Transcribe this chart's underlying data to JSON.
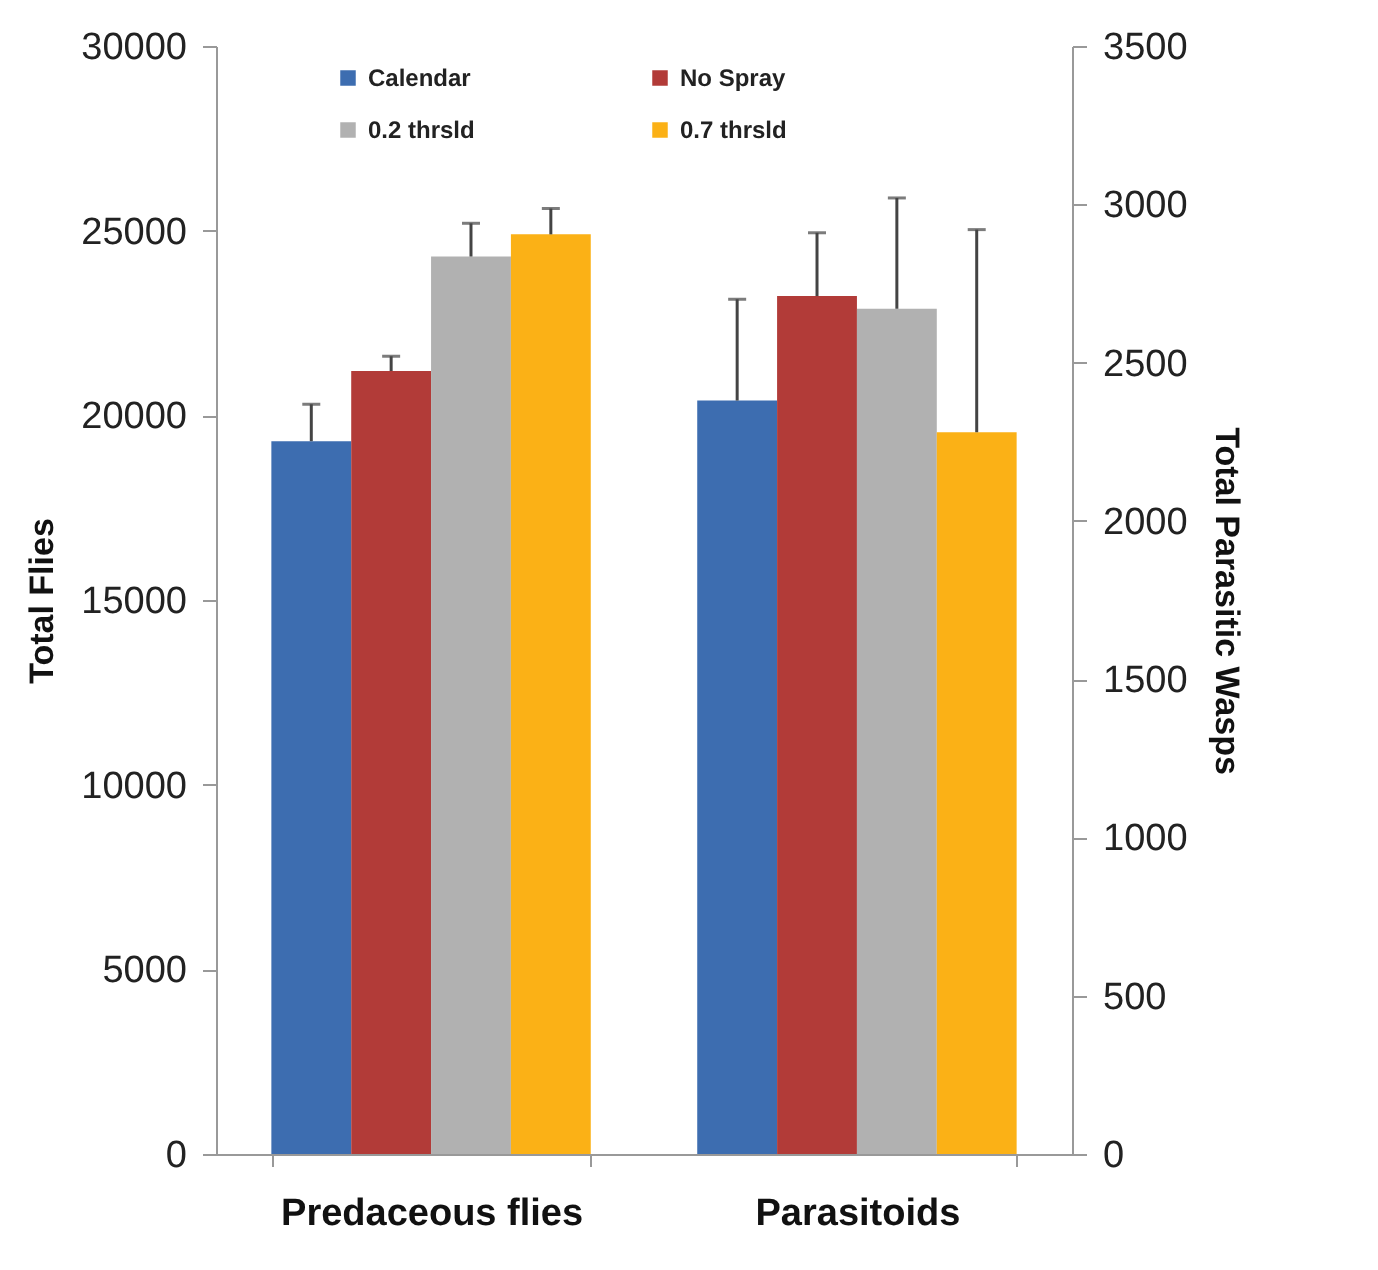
{
  "chart_data": {
    "type": "bar",
    "categories": [
      "Predaceous flies",
      "Parasitoids"
    ],
    "ylabel": "Total Flies",
    "ylim": [
      0,
      30000
    ],
    "yticks": [
      0,
      5000,
      10000,
      15000,
      20000,
      25000,
      30000
    ],
    "y2label": "Total Parasitic Wasps",
    "y2lim": [
      0,
      3500
    ],
    "y2ticks": [
      0,
      500,
      1000,
      1500,
      2000,
      2500,
      3000,
      3500
    ],
    "legend": "top",
    "series": [
      {
        "name": "Calendar",
        "color": "#3d6db0",
        "values": [
          19300,
          null
        ],
        "errors": [
          [
            19300,
            20300
          ],
          null
        ]
      },
      {
        "name": "No Spray",
        "color": "#b23b38",
        "values": [
          21200,
          null
        ],
        "errors": [
          [
            21200,
            21600
          ],
          null
        ]
      },
      {
        "name": "0.2 thrsld",
        "color": "#b1b1b1",
        "values": [
          24300,
          null
        ],
        "errors": [
          [
            24300,
            25200
          ],
          null
        ]
      },
      {
        "name": "0.7 thrsld",
        "color": "#fbb116",
        "values": [
          24900,
          null
        ],
        "errors": [
          [
            24900,
            25600
          ],
          null
        ]
      },
      {
        "color": "#3d6db0",
        "axis": "y2",
        "values": [
          null,
          2380
        ],
        "errors": [
          null,
          [
            2380,
            2700
          ]
        ]
      },
      {
        "color": "#b23b38",
        "axis": "y2",
        "values": [
          null,
          2710
        ],
        "errors": [
          null,
          [
            2710,
            2910
          ]
        ]
      },
      {
        "color": "#b1b1b1",
        "axis": "y2",
        "values": [
          null,
          2670
        ],
        "errors": [
          null,
          [
            2670,
            3020
          ]
        ]
      },
      {
        "color": "#fbb116",
        "axis": "y2",
        "values": [
          null,
          2280
        ],
        "errors": [
          null,
          [
            2280,
            2920
          ]
        ]
      }
    ]
  }
}
